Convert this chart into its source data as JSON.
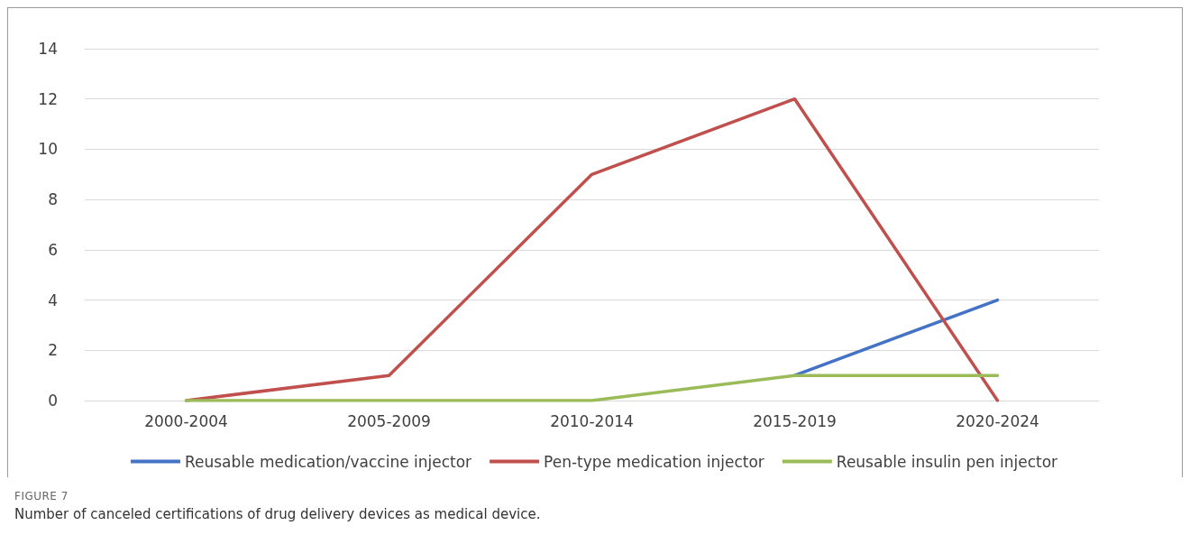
{
  "chart_data": {
    "type": "line",
    "categories": [
      "2000-2004",
      "2005-2009",
      "2010-2014",
      "2015-2019",
      "2020-2024"
    ],
    "series": [
      {
        "name": "Reusable medication/vaccine injector",
        "color": "#4472c4",
        "values": [
          null,
          null,
          null,
          1,
          4
        ]
      },
      {
        "name": "Pen-type medication injector",
        "color": "#c0504d",
        "values": [
          0,
          1,
          9,
          12,
          0
        ]
      },
      {
        "name": "Reusable insulin pen injector",
        "color": "#9bbb59",
        "values": [
          0,
          0,
          0,
          1,
          1
        ]
      }
    ],
    "ylim": [
      0,
      14
    ],
    "yticks": [
      0,
      2,
      4,
      6,
      8,
      10,
      12,
      14
    ],
    "grid": "y",
    "legend": "bottom",
    "marker": "none",
    "line_style": "solid",
    "annotations": [
      "FIGURE 7",
      "Number of canceled certifications of drug delivery devices as medical device."
    ]
  }
}
